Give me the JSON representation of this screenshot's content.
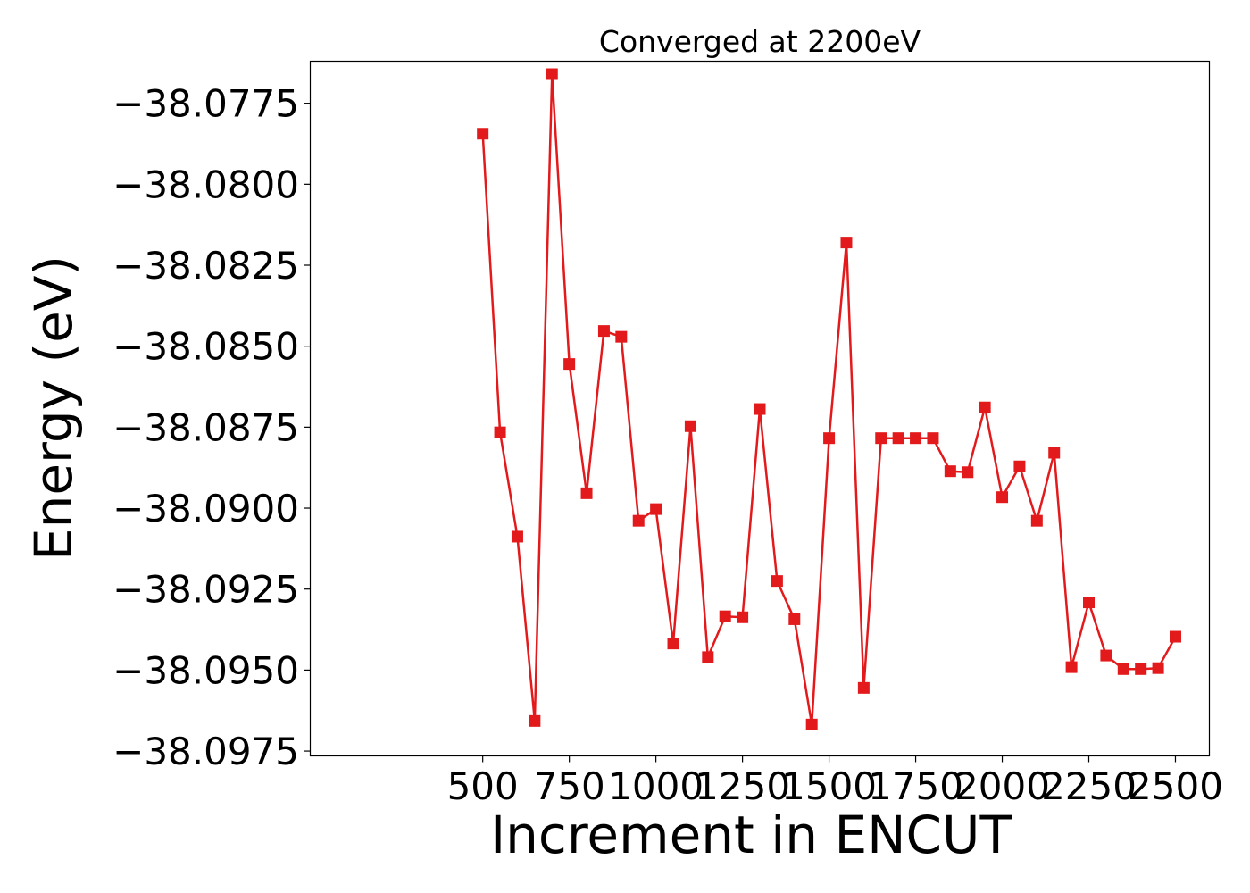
{
  "chart_data": {
    "type": "line",
    "title": "Converged at 2200eV",
    "xlabel": "Increment in ENCUT",
    "ylabel": "Energy (eV)",
    "xlim": [
      2,
      2598
    ],
    "ylim": [
      -38.09765,
      -38.0762
    ],
    "xticks": [
      500,
      750,
      1000,
      1250,
      1500,
      1750,
      2000,
      2250,
      2500
    ],
    "xtick_labels": [
      "500",
      "750",
      "1000",
      "1250",
      "1500",
      "1750",
      "2000",
      "2250",
      "2500"
    ],
    "yticks": [
      -38.0775,
      -38.08,
      -38.0825,
      -38.085,
      -38.0875,
      -38.09,
      -38.0925,
      -38.095,
      -38.0975
    ],
    "ytick_labels": [
      "−38.0775",
      "−38.0800",
      "−38.0825",
      "−38.0850",
      "−38.0875",
      "−38.0900",
      "−38.0925",
      "−38.0950",
      "−38.0975"
    ],
    "grid": false,
    "marker": "square",
    "color": "#e31a1c",
    "series": [
      {
        "x": [
          500,
          550,
          600,
          650,
          700,
          750,
          800,
          850,
          900,
          950,
          1000,
          1050,
          1100,
          1150,
          1200,
          1250,
          1300,
          1350,
          1400,
          1450,
          1500,
          1550,
          1600,
          1650,
          1700,
          1750,
          1800,
          1850,
          1900,
          1950,
          2000,
          2050,
          2100,
          2150,
          2200,
          2250,
          2300,
          2350,
          2400,
          2450,
          2500
        ],
        "y": [
          -38.07844,
          -38.08766,
          -38.09088,
          -38.09657,
          -38.0766,
          -38.08555,
          -38.08954,
          -38.08453,
          -38.08471,
          -38.09039,
          -38.09003,
          -38.09418,
          -38.08747,
          -38.0946,
          -38.09334,
          -38.09337,
          -38.08694,
          -38.09225,
          -38.09343,
          -38.09668,
          -38.08784,
          -38.0818,
          -38.09555,
          -38.08784,
          -38.08784,
          -38.08784,
          -38.08784,
          -38.08886,
          -38.08889,
          -38.08689,
          -38.08966,
          -38.08871,
          -38.09039,
          -38.08829,
          -38.09491,
          -38.09291,
          -38.09455,
          -38.09497,
          -38.09497,
          -38.09494,
          -38.09397
        ]
      }
    ]
  }
}
